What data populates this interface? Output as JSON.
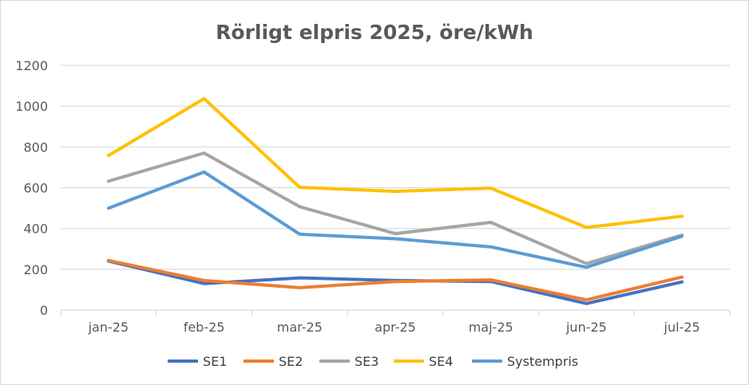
{
  "chart_data": {
    "type": "line",
    "title": "Rörligt elpris 2025, öre/kWh",
    "xlabel": "",
    "ylabel": "",
    "ylim": [
      0,
      1200
    ],
    "yticks": [
      0,
      200,
      400,
      600,
      800,
      1000,
      1200
    ],
    "ytick_labels": [
      "0",
      "200",
      "400",
      "600",
      "800",
      "1000",
      "1200"
    ],
    "grid": true,
    "legend_position": "bottom",
    "categories": [
      "jan-25",
      "feb-25",
      "mar-25",
      "apr-25",
      "maj-25",
      "jun-25",
      "jul-25"
    ],
    "series": [
      {
        "name": "SE1",
        "color": "#4472c4",
        "values": [
          240,
          130,
          158,
          145,
          140,
          32,
          138
        ]
      },
      {
        "name": "SE2",
        "color": "#ed7d31",
        "values": [
          243,
          145,
          110,
          140,
          148,
          50,
          162
        ]
      },
      {
        "name": "SE3",
        "color": "#a5a5a5",
        "values": [
          632,
          770,
          507,
          375,
          430,
          228,
          368
        ]
      },
      {
        "name": "SE4",
        "color": "#ffc000",
        "values": [
          758,
          1037,
          602,
          582,
          598,
          405,
          460
        ]
      },
      {
        "name": "Systempris",
        "color": "#5b9bd5",
        "values": [
          500,
          677,
          372,
          350,
          310,
          210,
          362
        ]
      }
    ]
  }
}
